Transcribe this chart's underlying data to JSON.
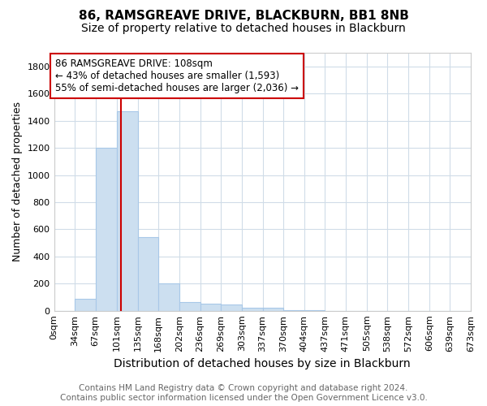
{
  "title": "86, RAMSGREAVE DRIVE, BLACKBURN, BB1 8NB",
  "subtitle": "Size of property relative to detached houses in Blackburn",
  "xlabel": "Distribution of detached houses by size in Blackburn",
  "ylabel": "Number of detached properties",
  "bin_edges": [
    0,
    34,
    67,
    101,
    135,
    168,
    202,
    236,
    269,
    303,
    337,
    370,
    404,
    437,
    471,
    505,
    538,
    572,
    606,
    639,
    673
  ],
  "bar_heights": [
    0,
    90,
    1200,
    1470,
    540,
    200,
    65,
    50,
    45,
    25,
    20,
    5,
    5,
    0,
    0,
    0,
    0,
    0,
    0,
    0
  ],
  "bar_color": "#ccdff0",
  "bar_edge_color": "#a8c8e8",
  "red_line_x": 108,
  "red_line_color": "#cc0000",
  "annotation_text": "86 RAMSGREAVE DRIVE: 108sqm\n← 43% of detached houses are smaller (1,593)\n55% of semi-detached houses are larger (2,036) →",
  "annotation_box_color": "#ffffff",
  "annotation_box_edge_color": "#cc0000",
  "ylim": [
    0,
    1900
  ],
  "yticks": [
    0,
    200,
    400,
    600,
    800,
    1000,
    1200,
    1400,
    1600,
    1800
  ],
  "footer_text": "Contains HM Land Registry data © Crown copyright and database right 2024.\nContains public sector information licensed under the Open Government Licence v3.0.",
  "bg_color": "#ffffff",
  "plot_bg_color": "#ffffff",
  "grid_color": "#d0dce8",
  "title_fontsize": 11,
  "subtitle_fontsize": 10,
  "xlabel_fontsize": 10,
  "ylabel_fontsize": 9,
  "footer_fontsize": 7.5,
  "tick_fontsize": 8,
  "annotation_fontsize": 8.5
}
